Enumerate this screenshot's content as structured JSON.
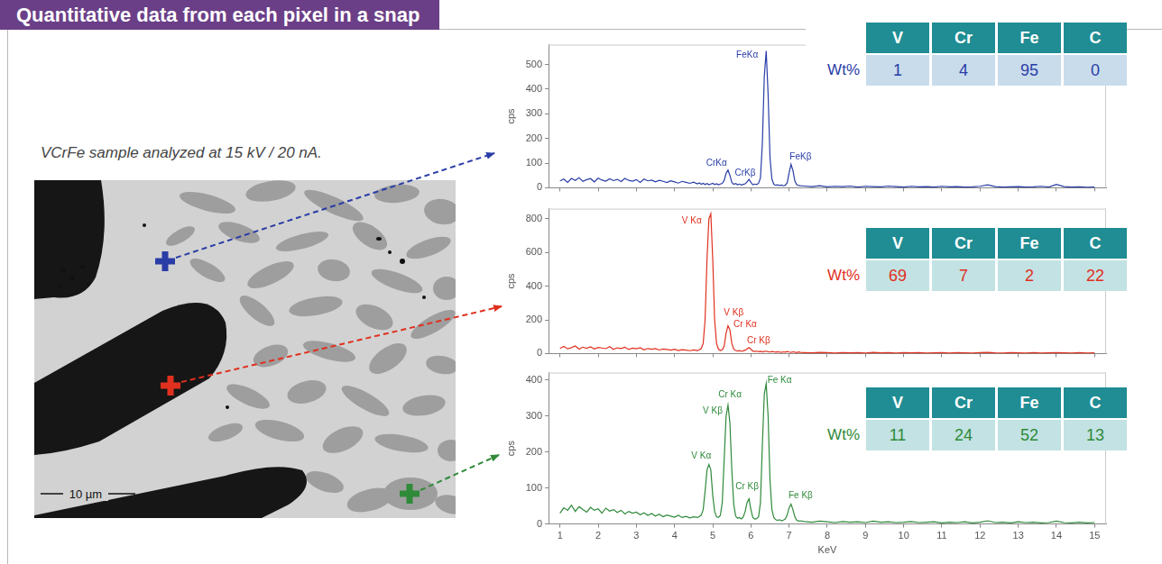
{
  "header": {
    "title": "Quantitative data from each pixel in a snap"
  },
  "caption": "VCrFe sample analyzed at 15 kV / 20 nA.",
  "image": {
    "scale_bar": "10 µm"
  },
  "chart_data": [
    {
      "type": "line",
      "color": "#2a3da6",
      "ylabel": "cps",
      "grid": false,
      "tick_labels": "y",
      "xlim": [
        0.7,
        15.3
      ],
      "xticks": [
        1,
        2,
        3,
        4,
        5,
        6,
        7,
        8,
        9,
        10,
        11,
        12,
        13,
        14,
        15
      ],
      "ylim": [
        0,
        580
      ],
      "yticks": [
        0,
        100,
        200,
        300,
        400,
        500
      ],
      "x": [
        1.0,
        1.1,
        1.2,
        1.3,
        1.4,
        1.5,
        1.6,
        1.7,
        1.8,
        1.9,
        2.0,
        2.1,
        2.2,
        2.3,
        2.4,
        2.5,
        2.6,
        2.7,
        2.8,
        2.9,
        3.0,
        3.1,
        3.2,
        3.3,
        3.4,
        3.5,
        3.6,
        3.7,
        3.8,
        3.9,
        4.0,
        4.1,
        4.2,
        4.3,
        4.4,
        4.5,
        4.6,
        4.65,
        4.7,
        4.75,
        4.8,
        4.85,
        4.9,
        4.95,
        5.0,
        5.05,
        5.1,
        5.15,
        5.2,
        5.25,
        5.3,
        5.35,
        5.4,
        5.45,
        5.5,
        5.55,
        5.6,
        5.65,
        5.7,
        5.75,
        5.8,
        5.85,
        5.9,
        5.95,
        6.0,
        6.05,
        6.1,
        6.15,
        6.2,
        6.25,
        6.3,
        6.35,
        6.4,
        6.45,
        6.5,
        6.55,
        6.6,
        6.65,
        6.7,
        6.75,
        6.8,
        6.85,
        6.9,
        6.95,
        7.0,
        7.05,
        7.1,
        7.15,
        7.2,
        7.25,
        7.3,
        7.4,
        7.6,
        7.8,
        8.0,
        8.2,
        8.4,
        8.6,
        8.8,
        9.0,
        9.2,
        9.4,
        9.6,
        9.8,
        10.0,
        10.2,
        10.4,
        10.6,
        10.8,
        11.0,
        11.2,
        11.4,
        11.6,
        11.8,
        12.0,
        12.2,
        12.4,
        12.6,
        12.8,
        13.0,
        13.2,
        13.4,
        13.6,
        13.8,
        14.0,
        14.2,
        14.4,
        14.6,
        14.8,
        15.0
      ],
      "values": [
        28,
        35,
        22,
        38,
        30,
        41,
        26,
        33,
        37,
        24,
        39,
        31,
        27,
        36,
        29,
        34,
        25,
        38,
        30,
        27,
        33,
        22,
        35,
        28,
        31,
        24,
        30,
        26,
        21,
        28,
        24,
        19,
        26,
        22,
        18,
        23,
        16,
        20,
        14,
        18,
        13,
        17,
        12,
        15,
        18,
        13,
        16,
        12,
        15,
        18,
        30,
        58,
        72,
        50,
        22,
        14,
        17,
        12,
        15,
        11,
        14,
        16,
        24,
        34,
        22,
        12,
        15,
        13,
        18,
        40,
        180,
        450,
        555,
        380,
        120,
        35,
        14,
        10,
        12,
        9,
        11,
        8,
        10,
        20,
        60,
        95,
        70,
        28,
        12,
        9,
        8,
        7,
        5,
        8,
        4,
        6,
        5,
        7,
        3,
        6,
        5,
        4,
        7,
        5,
        3,
        6,
        4,
        5,
        3,
        6,
        4,
        5,
        3,
        4,
        6,
        12,
        5,
        3,
        4,
        5,
        3,
        4,
        6,
        3,
        14,
        5,
        3,
        4,
        2,
        3
      ],
      "annotations": [
        {
          "text": "FeKα",
          "x": 5.9,
          "y": 520
        },
        {
          "text": "CrKα",
          "x": 5.1,
          "y": 80
        },
        {
          "text": "CrKβ",
          "x": 5.85,
          "y": 40
        },
        {
          "text": "FeKβ",
          "x": 7.3,
          "y": 105
        }
      ],
      "table": {
        "columns": [
          "V",
          "Cr",
          "Fe",
          "C"
        ],
        "row_label": "Wt%",
        "values": [
          1,
          4,
          95,
          0
        ]
      }
    },
    {
      "type": "line",
      "color": "#e0301e",
      "ylabel": "cps",
      "grid": false,
      "tick_labels": "y",
      "xlim": [
        0.7,
        15.3
      ],
      "xticks": [
        1,
        2,
        3,
        4,
        5,
        6,
        7,
        8,
        9,
        10,
        11,
        12,
        13,
        14,
        15
      ],
      "ylim": [
        0,
        860
      ],
      "yticks": [
        0,
        200,
        400,
        600,
        800
      ],
      "x": [
        1.0,
        1.1,
        1.2,
        1.3,
        1.4,
        1.5,
        1.6,
        1.7,
        1.8,
        1.9,
        2.0,
        2.1,
        2.2,
        2.3,
        2.4,
        2.5,
        2.6,
        2.7,
        2.8,
        2.9,
        3.0,
        3.1,
        3.2,
        3.3,
        3.4,
        3.5,
        3.6,
        3.7,
        3.8,
        3.9,
        4.0,
        4.1,
        4.2,
        4.3,
        4.4,
        4.5,
        4.6,
        4.65,
        4.7,
        4.75,
        4.8,
        4.85,
        4.9,
        4.95,
        5.0,
        5.05,
        5.1,
        5.15,
        5.2,
        5.25,
        5.3,
        5.35,
        5.4,
        5.45,
        5.5,
        5.55,
        5.6,
        5.65,
        5.7,
        5.75,
        5.8,
        5.85,
        5.9,
        5.95,
        6.0,
        6.05,
        6.1,
        6.15,
        6.2,
        6.25,
        6.3,
        6.35,
        6.4,
        6.45,
        6.5,
        6.55,
        6.6,
        6.65,
        6.7,
        6.75,
        6.8,
        6.85,
        6.9,
        6.95,
        7.0,
        7.05,
        7.1,
        7.15,
        7.2,
        7.25,
        7.3,
        7.4,
        7.6,
        7.8,
        8.0,
        8.2,
        8.4,
        8.6,
        8.8,
        9.0,
        9.2,
        9.4,
        9.6,
        9.8,
        10.0,
        10.2,
        10.4,
        10.6,
        10.8,
        11.0,
        11.2,
        11.4,
        11.6,
        11.8,
        12.0,
        12.2,
        12.4,
        12.6,
        12.8,
        13.0,
        13.2,
        13.4,
        13.6,
        13.8,
        14.0,
        14.2,
        14.4,
        14.6,
        14.8,
        15.0
      ],
      "values": [
        30,
        42,
        28,
        35,
        45,
        26,
        38,
        31,
        40,
        27,
        36,
        33,
        29,
        41,
        25,
        34,
        30,
        37,
        24,
        32,
        28,
        35,
        22,
        30,
        26,
        29,
        21,
        27,
        24,
        20,
        25,
        18,
        23,
        20,
        17,
        21,
        18,
        22,
        30,
        60,
        200,
        560,
        800,
        830,
        560,
        200,
        60,
        26,
        18,
        22,
        45,
        120,
        165,
        140,
        60,
        25,
        18,
        15,
        17,
        13,
        16,
        20,
        28,
        35,
        26,
        15,
        12,
        14,
        11,
        13,
        10,
        12,
        14,
        11,
        9,
        12,
        10,
        8,
        11,
        9,
        7,
        10,
        8,
        12,
        9,
        7,
        10,
        8,
        6,
        9,
        7,
        6,
        4,
        7,
        5,
        3,
        6,
        4,
        5,
        3,
        7,
        4,
        5,
        3,
        6,
        4,
        5,
        3,
        4,
        6,
        3,
        5,
        4,
        3,
        5,
        7,
        4,
        3,
        5,
        4,
        3,
        5,
        3,
        4,
        6,
        4,
        3,
        5,
        3,
        4
      ],
      "annotations": [
        {
          "text": "V Kα",
          "x": 4.45,
          "y": 760
        },
        {
          "text": "V Kβ",
          "x": 5.55,
          "y": 215
        },
        {
          "text": "Cr Kα",
          "x": 5.85,
          "y": 145
        },
        {
          "text": "Cr Kβ",
          "x": 6.2,
          "y": 50
        }
      ],
      "table": {
        "columns": [
          "V",
          "Cr",
          "Fe",
          "C"
        ],
        "row_label": "Wt%",
        "values": [
          69,
          7,
          2,
          22
        ]
      }
    },
    {
      "type": "line",
      "color": "#2f8a3a",
      "ylabel": "cps",
      "xlabel": "KeV",
      "grid": false,
      "xlim": [
        0.7,
        15.3
      ],
      "xticks": [
        1,
        2,
        3,
        4,
        5,
        6,
        7,
        8,
        9,
        10,
        11,
        12,
        13,
        14,
        15
      ],
      "ylim": [
        0,
        420
      ],
      "yticks": [
        0,
        100,
        200,
        300,
        400
      ],
      "x": [
        1.0,
        1.1,
        1.2,
        1.3,
        1.4,
        1.5,
        1.6,
        1.7,
        1.8,
        1.9,
        2.0,
        2.1,
        2.2,
        2.3,
        2.4,
        2.5,
        2.6,
        2.7,
        2.8,
        2.9,
        3.0,
        3.1,
        3.2,
        3.3,
        3.4,
        3.5,
        3.6,
        3.7,
        3.8,
        3.9,
        4.0,
        4.1,
        4.2,
        4.3,
        4.4,
        4.5,
        4.6,
        4.65,
        4.7,
        4.75,
        4.8,
        4.85,
        4.9,
        4.95,
        5.0,
        5.05,
        5.1,
        5.15,
        5.2,
        5.25,
        5.3,
        5.35,
        5.4,
        5.45,
        5.5,
        5.55,
        5.6,
        5.65,
        5.7,
        5.75,
        5.8,
        5.85,
        5.9,
        5.95,
        6.0,
        6.05,
        6.1,
        6.15,
        6.2,
        6.25,
        6.3,
        6.35,
        6.4,
        6.45,
        6.5,
        6.55,
        6.6,
        6.65,
        6.7,
        6.75,
        6.8,
        6.85,
        6.9,
        6.95,
        7.0,
        7.05,
        7.1,
        7.15,
        7.2,
        7.25,
        7.3,
        7.4,
        7.6,
        7.8,
        8.0,
        8.2,
        8.4,
        8.6,
        8.8,
        9.0,
        9.2,
        9.4,
        9.6,
        9.8,
        10.0,
        10.2,
        10.4,
        10.6,
        10.8,
        11.0,
        11.2,
        11.4,
        11.6,
        11.8,
        12.0,
        12.2,
        12.4,
        12.6,
        12.8,
        13.0,
        13.2,
        13.4,
        13.6,
        13.8,
        14.0,
        14.2,
        14.4,
        14.6,
        14.8,
        15.0
      ],
      "values": [
        30,
        45,
        38,
        52,
        35,
        48,
        40,
        33,
        46,
        38,
        42,
        30,
        44,
        36,
        40,
        32,
        38,
        28,
        35,
        30,
        33,
        26,
        31,
        24,
        29,
        22,
        27,
        20,
        25,
        22,
        19,
        24,
        18,
        21,
        17,
        20,
        18,
        21,
        25,
        40,
        90,
        150,
        165,
        150,
        80,
        35,
        20,
        18,
        24,
        60,
        180,
        300,
        330,
        280,
        150,
        55,
        22,
        16,
        18,
        14,
        20,
        35,
        60,
        70,
        40,
        18,
        14,
        15,
        20,
        60,
        220,
        360,
        390,
        300,
        120,
        40,
        18,
        12,
        10,
        12,
        9,
        11,
        14,
        25,
        45,
        55,
        40,
        20,
        10,
        8,
        9,
        7,
        5,
        8,
        6,
        4,
        7,
        5,
        6,
        4,
        8,
        5,
        6,
        4,
        5,
        7,
        4,
        5,
        6,
        3,
        5,
        4,
        6,
        3,
        5,
        9,
        4,
        5,
        3,
        6,
        4,
        5,
        3,
        4,
        8,
        4,
        3,
        5,
        3,
        4
      ],
      "annotations": [
        {
          "text": "V Kα",
          "x": 4.7,
          "y": 175
        },
        {
          "text": "V Kβ",
          "x": 5.0,
          "y": 300
        },
        {
          "text": "Cr Kα",
          "x": 5.45,
          "y": 345
        },
        {
          "text": "Cr Kβ",
          "x": 5.9,
          "y": 90
        },
        {
          "text": "Fe Kα",
          "x": 6.75,
          "y": 385
        },
        {
          "text": "Fe Kβ",
          "x": 7.3,
          "y": 65
        }
      ],
      "table": {
        "columns": [
          "V",
          "Cr",
          "Fe",
          "C"
        ],
        "row_label": "Wt%",
        "values": [
          11,
          24,
          52,
          13
        ]
      }
    }
  ]
}
